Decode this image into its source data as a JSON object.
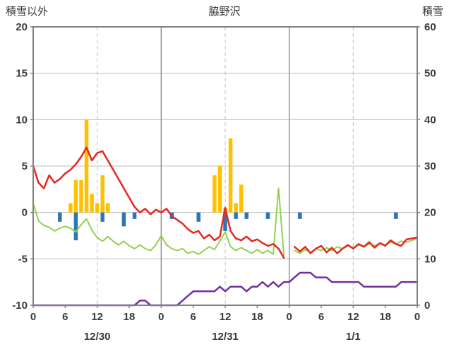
{
  "header": {
    "left_axis_title": "積雪以外",
    "station_name": "脇野沢",
    "right_axis_title": "積雪"
  },
  "chart_data": {
    "type": "line",
    "title": "脇野沢",
    "left_axis": {
      "label": "積雪以外",
      "min": -10,
      "max": 20,
      "ticks": [
        20,
        15,
        10,
        5,
        0,
        -5,
        -10
      ]
    },
    "right_axis": {
      "label": "積雪",
      "min": 0,
      "max": 60,
      "ticks": [
        60,
        50,
        40,
        30,
        20,
        10,
        0
      ]
    },
    "x_axis": {
      "hours_total": 72,
      "tick_every_hours": 6,
      "hour_tick_labels": [
        "0",
        "6",
        "12",
        "18",
        "0",
        "6",
        "12",
        "18",
        "0",
        "6",
        "12",
        "18",
        "0"
      ],
      "date_labels": [
        "12/30",
        "12/31",
        "1/1"
      ],
      "date_label_hours": [
        12,
        36,
        60
      ],
      "day_boundary_hours": [
        24,
        48
      ],
      "dashed_hours": [
        12,
        36,
        60
      ]
    },
    "series": [
      {
        "name": "orange-bars",
        "type": "bar",
        "axis": "left",
        "color": "#ffc000",
        "values": [
          0,
          0,
          0,
          0,
          0,
          0,
          0,
          1,
          3.5,
          3.5,
          10,
          2,
          1,
          4,
          1,
          0,
          0,
          0,
          0,
          0,
          0,
          0,
          0,
          0,
          0,
          0,
          0,
          0,
          0,
          0,
          0,
          0,
          0,
          0,
          4,
          5,
          0.5,
          8,
          1,
          3,
          0,
          0,
          0,
          0,
          0,
          0,
          0,
          0,
          0,
          0,
          0,
          0,
          0,
          0,
          0,
          0,
          0,
          0,
          0,
          0,
          0,
          0,
          0,
          0,
          0,
          0,
          0,
          0,
          0,
          0,
          0,
          0
        ]
      },
      {
        "name": "blue-bars",
        "type": "bar",
        "axis": "left",
        "color": "#2e75b6",
        "values": [
          0,
          0,
          0,
          0,
          0,
          -1.0,
          0,
          0,
          -3.0,
          0,
          0,
          0,
          0,
          -1.0,
          0,
          0,
          0,
          -1.5,
          0,
          -0.7,
          0,
          0,
          0,
          0,
          0,
          0,
          -0.7,
          0,
          0,
          0,
          0,
          -1.0,
          0,
          0,
          0,
          0,
          -2.0,
          0,
          -0.7,
          0,
          -0.7,
          0,
          0,
          0,
          -0.7,
          0,
          0,
          0,
          0,
          0,
          -0.7,
          0,
          0,
          0,
          0,
          0,
          0,
          0,
          0,
          0,
          0,
          0,
          0,
          0,
          0,
          0,
          0,
          0,
          -0.7,
          0,
          0,
          0
        ]
      },
      {
        "name": "green-line",
        "type": "line",
        "axis": "left",
        "color": "#92d050",
        "stroke_width": 2,
        "values": [
          1.0,
          -0.9,
          -1.4,
          -1.6,
          -2.0,
          -1.7,
          -1.5,
          -1.7,
          -2.1,
          -1.3,
          -0.7,
          -1.9,
          -2.7,
          -3.1,
          -2.6,
          -3.1,
          -3.5,
          -3.1,
          -3.6,
          -3.9,
          -3.5,
          -3.9,
          -4.1,
          -3.5,
          -2.5,
          -3.5,
          -3.9,
          -4.1,
          -3.9,
          -4.4,
          -4.2,
          -4.5,
          -4.1,
          -3.7,
          -4.0,
          -3.1,
          -2.1,
          -3.7,
          -4.1,
          -3.8,
          -4.1,
          -4.4,
          -4.0,
          -4.4,
          -4.1,
          -4.5,
          2.6,
          -4.6,
          null,
          -4.1,
          -4.4,
          -4.0,
          -4.3,
          -3.9,
          -4.1,
          -3.8,
          -4.1,
          -3.7,
          -3.9,
          -3.6,
          -3.8,
          -3.5,
          -3.7,
          -3.4,
          -3.6,
          -3.3,
          -3.5,
          -3.2,
          -3.4,
          -3.1,
          -3.2,
          -3.0,
          -2.8
        ]
      },
      {
        "name": "red-line",
        "type": "line",
        "axis": "left",
        "color": "#e8261f",
        "stroke_width": 2.5,
        "values": [
          5.0,
          3.2,
          2.6,
          4.0,
          3.2,
          3.6,
          4.2,
          4.6,
          5.2,
          6.0,
          7.0,
          5.6,
          6.4,
          6.6,
          5.6,
          4.6,
          3.6,
          2.6,
          1.6,
          0.6,
          0.0,
          0.4,
          -0.2,
          0.3,
          0.0,
          0.4,
          -0.4,
          -0.8,
          -1.2,
          -1.8,
          -2.2,
          -2.0,
          -2.8,
          -2.4,
          -3.0,
          -2.6,
          0.5,
          -2.0,
          -2.8,
          -3.0,
          -2.6,
          -3.1,
          -2.9,
          -3.3,
          -3.6,
          -3.4,
          -3.9,
          -4.9,
          null,
          -3.7,
          -4.2,
          -3.7,
          -4.4,
          -3.9,
          -3.6,
          -4.3,
          -3.8,
          -4.4,
          -3.9,
          -3.5,
          -3.9,
          -3.4,
          -3.7,
          -3.2,
          -3.8,
          -3.3,
          -3.6,
          -3.0,
          -3.4,
          -3.6,
          -2.9,
          -2.8,
          -2.7
        ]
      },
      {
        "name": "purple-line",
        "type": "line",
        "axis": "right",
        "color": "#7030a0",
        "stroke_width": 2.5,
        "values": [
          0,
          0,
          0,
          0,
          0,
          0,
          0,
          0,
          0,
          0,
          0,
          0,
          0,
          0,
          0,
          0,
          0,
          0,
          0,
          0,
          1,
          1,
          0,
          0,
          0,
          0,
          0,
          0,
          1,
          2,
          3,
          3,
          3,
          3,
          3,
          4,
          3,
          4,
          4,
          4,
          3,
          4,
          4,
          5,
          4,
          5,
          4,
          5,
          5,
          6,
          7,
          7,
          7,
          6,
          6,
          6,
          5,
          5,
          5,
          5,
          5,
          5,
          4,
          4,
          4,
          4,
          4,
          4,
          4,
          5,
          5,
          5,
          5
        ]
      }
    ],
    "colors": {
      "background": "#ffffff",
      "grid": "#bdbdbd",
      "day_boundary": "#8c8c8c",
      "border": "#808080",
      "text": "#3a3a3a"
    }
  }
}
